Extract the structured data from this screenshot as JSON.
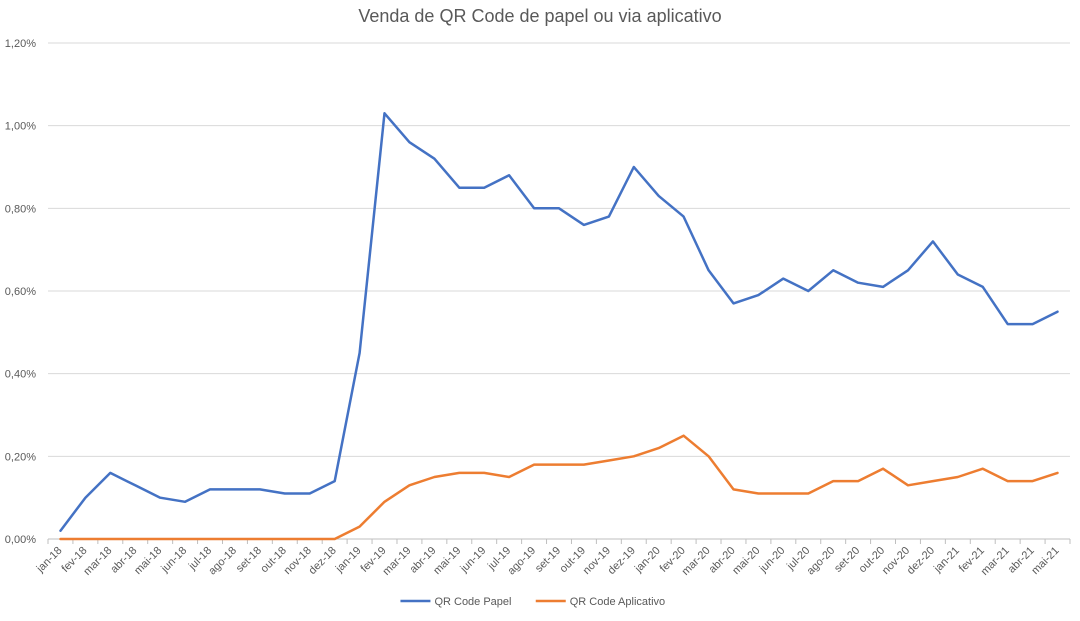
{
  "chart_data": {
    "type": "line",
    "title": "Venda de QR Code de papel ou via aplicativo",
    "xlabel": "",
    "ylabel": "",
    "categories": [
      "jan-18",
      "fev-18",
      "mar-18",
      "abr-18",
      "mai-18",
      "jun-18",
      "jul-18",
      "ago-18",
      "set-18",
      "out-18",
      "nov-18",
      "dez-18",
      "jan-19",
      "fev-19",
      "mar-19",
      "abr-19",
      "mai-19",
      "jun-19",
      "jul-19",
      "ago-19",
      "set-19",
      "out-19",
      "nov-19",
      "dez-19",
      "jan-20",
      "fev-20",
      "mar-20",
      "abr-20",
      "mai-20",
      "jun-20",
      "jul-20",
      "ago-20",
      "set-20",
      "out-20",
      "nov-20",
      "dez-20",
      "jan-21",
      "fev-21",
      "mar-21",
      "abr-21",
      "mai-21"
    ],
    "ylim": [
      0,
      1.2
    ],
    "yticks": [
      "0,00%",
      "0,20%",
      "0,40%",
      "0,60%",
      "0,80%",
      "1,00%",
      "1,20%"
    ],
    "grid": true,
    "legend_position": "bottom",
    "series": [
      {
        "name": "QR Code Papel",
        "color": "#4472C4",
        "values": [
          0.02,
          0.1,
          0.16,
          0.13,
          0.1,
          0.09,
          0.12,
          0.12,
          0.12,
          0.11,
          0.11,
          0.14,
          0.45,
          1.03,
          0.96,
          0.92,
          0.85,
          0.85,
          0.88,
          0.8,
          0.8,
          0.76,
          0.78,
          0.9,
          0.83,
          0.78,
          0.65,
          0.57,
          0.59,
          0.63,
          0.6,
          0.65,
          0.62,
          0.61,
          0.65,
          0.72,
          0.64,
          0.61,
          0.52,
          0.52,
          0.55
        ]
      },
      {
        "name": "QR Code Aplicativo",
        "color": "#ED7D31",
        "values": [
          0,
          0,
          0,
          0,
          0,
          0,
          0,
          0,
          0,
          0,
          0,
          0,
          0.03,
          0.09,
          0.13,
          0.15,
          0.16,
          0.16,
          0.15,
          0.18,
          0.18,
          0.18,
          0.19,
          0.2,
          0.22,
          0.25,
          0.2,
          0.12,
          0.11,
          0.11,
          0.11,
          0.14,
          0.14,
          0.17,
          0.13,
          0.14,
          0.15,
          0.17,
          0.14,
          0.14,
          0.16
        ]
      }
    ]
  }
}
